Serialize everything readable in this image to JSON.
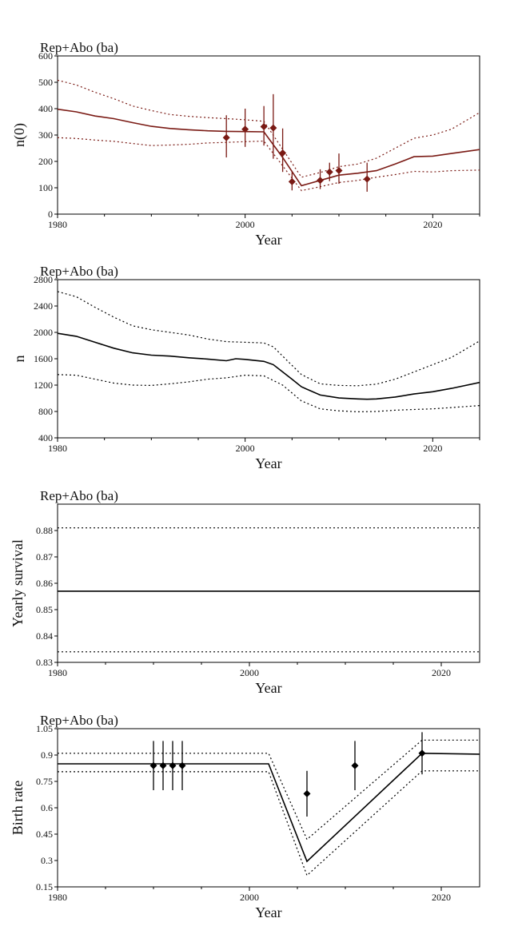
{
  "chart_data": [
    {
      "type": "line",
      "title": "Rep+Abo (ba)",
      "xlabel": "Year",
      "ylabel": "n(0)",
      "xlim": [
        1980,
        2025
      ],
      "ylim": [
        0,
        600
      ],
      "xticks": [
        1980,
        2000,
        2020
      ],
      "yticks": [
        0,
        100,
        200,
        300,
        400,
        500,
        600
      ],
      "grid": false,
      "series_color": "#7a1a14",
      "series": [
        {
          "style": "solid",
          "x": [
            1980,
            1982,
            1984,
            1986,
            1988,
            1990,
            1992,
            1994,
            1996,
            1998,
            2000,
            2002,
            2004,
            2006,
            2008,
            2010,
            2012,
            2014,
            2016,
            2018,
            2020,
            2022,
            2025
          ],
          "y": [
            398,
            388,
            372,
            362,
            347,
            333,
            325,
            320,
            316,
            314,
            313,
            312,
            215,
            108,
            128,
            148,
            155,
            165,
            190,
            218,
            220,
            230,
            245
          ]
        },
        {
          "style": "dotted",
          "x": [
            1980,
            1982,
            1984,
            1986,
            1988,
            1990,
            1992,
            1994,
            1996,
            1998,
            2000,
            2002,
            2004,
            2006,
            2008,
            2010,
            2012,
            2014,
            2016,
            2018,
            2020,
            2022,
            2025
          ],
          "y": [
            508,
            490,
            462,
            438,
            410,
            393,
            378,
            371,
            366,
            362,
            358,
            352,
            246,
            140,
            158,
            180,
            190,
            212,
            250,
            288,
            300,
            322,
            385
          ]
        },
        {
          "style": "dotted",
          "x": [
            1980,
            1982,
            1984,
            1986,
            1988,
            1990,
            1992,
            1994,
            1996,
            1998,
            2000,
            2002,
            2004,
            2006,
            2008,
            2010,
            2012,
            2014,
            2016,
            2018,
            2020,
            2022,
            2025
          ],
          "y": [
            290,
            287,
            281,
            276,
            268,
            260,
            262,
            265,
            270,
            272,
            275,
            277,
            183,
            89,
            104,
            120,
            128,
            140,
            150,
            162,
            160,
            165,
            167
          ]
        }
      ],
      "points": [
        {
          "x": 1998,
          "y": 290,
          "low": 215,
          "high": 375
        },
        {
          "x": 2000,
          "y": 322,
          "low": 255,
          "high": 400
        },
        {
          "x": 2002,
          "y": 332,
          "low": 260,
          "high": 410
        },
        {
          "x": 2003,
          "y": 327,
          "low": 210,
          "high": 455
        },
        {
          "x": 2004,
          "y": 232,
          "low": 160,
          "high": 325
        },
        {
          "x": 2005,
          "y": 123,
          "low": 90,
          "high": 160
        },
        {
          "x": 2008,
          "y": 128,
          "low": 95,
          "high": 170
        },
        {
          "x": 2009,
          "y": 160,
          "low": 125,
          "high": 195
        },
        {
          "x": 2010,
          "y": 165,
          "low": 115,
          "high": 230
        },
        {
          "x": 2013,
          "y": 133,
          "low": 85,
          "high": 195
        }
      ]
    },
    {
      "type": "line",
      "title": "Rep+Abo (ba)",
      "xlabel": "Year",
      "ylabel": "n",
      "xlim": [
        1980,
        2025
      ],
      "ylim": [
        400,
        2800
      ],
      "xticks": [
        1980,
        2000,
        2020
      ],
      "yticks": [
        400,
        800,
        1200,
        1600,
        2000,
        2400,
        2800
      ],
      "grid": false,
      "series_color": "#000000",
      "series": [
        {
          "style": "solid",
          "x": [
            1980,
            1982,
            1984,
            1986,
            1988,
            1990,
            1992,
            1994,
            1996,
            1998,
            1999,
            2000,
            2002,
            2003,
            2004,
            2005,
            2006,
            2008,
            2010,
            2012,
            2013,
            2014,
            2016,
            2018,
            2020,
            2022,
            2025
          ],
          "y": [
            1985,
            1940,
            1850,
            1760,
            1690,
            1655,
            1640,
            1615,
            1595,
            1570,
            1600,
            1590,
            1560,
            1510,
            1400,
            1290,
            1175,
            1050,
            1005,
            990,
            985,
            990,
            1020,
            1065,
            1100,
            1150,
            1240
          ]
        },
        {
          "style": "dotted",
          "x": [
            1980,
            1982,
            1984,
            1986,
            1988,
            1990,
            1992,
            1994,
            1996,
            1998,
            2000,
            2002,
            2003,
            2004,
            2005,
            2006,
            2008,
            2010,
            2012,
            2014,
            2016,
            2018,
            2020,
            2022,
            2025
          ],
          "y": [
            2620,
            2540,
            2380,
            2230,
            2100,
            2040,
            2000,
            1960,
            1900,
            1860,
            1850,
            1840,
            1780,
            1640,
            1500,
            1360,
            1220,
            1195,
            1190,
            1215,
            1290,
            1400,
            1510,
            1620,
            1870
          ]
        },
        {
          "style": "dotted",
          "x": [
            1980,
            1982,
            1984,
            1986,
            1988,
            1990,
            1992,
            1994,
            1996,
            1998,
            2000,
            2002,
            2004,
            2006,
            2008,
            2010,
            2012,
            2014,
            2016,
            2018,
            2020,
            2022,
            2025
          ],
          "y": [
            1360,
            1350,
            1290,
            1230,
            1200,
            1195,
            1220,
            1250,
            1290,
            1310,
            1350,
            1340,
            1200,
            960,
            840,
            810,
            795,
            800,
            820,
            830,
            840,
            860,
            890
          ]
        }
      ],
      "points": []
    },
    {
      "type": "line",
      "title": "Rep+Abo (ba)",
      "xlabel": "Year",
      "ylabel": "Yearly survival",
      "xlim": [
        1980,
        2024
      ],
      "ylim": [
        0.83,
        0.89
      ],
      "xticks": [
        1980,
        2000,
        2020
      ],
      "yticks": [
        0.83,
        0.84,
        0.85,
        0.86,
        0.87,
        0.88
      ],
      "grid": false,
      "series_color": "#000000",
      "series": [
        {
          "style": "solid",
          "x": [
            1980,
            2024
          ],
          "y": [
            0.857,
            0.857
          ]
        },
        {
          "style": "dotted",
          "x": [
            1980,
            2024
          ],
          "y": [
            0.881,
            0.881
          ]
        },
        {
          "style": "dotted",
          "x": [
            1980,
            2024
          ],
          "y": [
            0.834,
            0.834
          ]
        }
      ],
      "points": []
    },
    {
      "type": "line",
      "title": "Rep+Abo (ba)",
      "xlabel": "Year",
      "ylabel": "Birth rate",
      "xlim": [
        1980,
        2024
      ],
      "ylim": [
        0.15,
        1.05
      ],
      "xticks": [
        1980,
        2000,
        2020
      ],
      "yticks": [
        0.15,
        0.3,
        0.45,
        0.6,
        0.75,
        0.9,
        1.05
      ],
      "grid": false,
      "series_color": "#000000",
      "series": [
        {
          "style": "solid",
          "x": [
            1980,
            2002,
            2006,
            2018,
            2024
          ],
          "y": [
            0.85,
            0.85,
            0.295,
            0.91,
            0.905
          ]
        },
        {
          "style": "dotted",
          "x": [
            1980,
            2002,
            2006,
            2018,
            2024
          ],
          "y": [
            0.91,
            0.91,
            0.42,
            0.985,
            0.985
          ]
        },
        {
          "style": "dotted",
          "x": [
            1980,
            2002,
            2006,
            2018,
            2024
          ],
          "y": [
            0.805,
            0.805,
            0.215,
            0.81,
            0.81
          ]
        }
      ],
      "points": [
        {
          "x": 1990,
          "y": 0.84,
          "low": 0.7,
          "high": 0.98
        },
        {
          "x": 1991,
          "y": 0.84,
          "low": 0.7,
          "high": 0.98
        },
        {
          "x": 1992,
          "y": 0.84,
          "low": 0.7,
          "high": 0.98
        },
        {
          "x": 1993,
          "y": 0.84,
          "low": 0.7,
          "high": 0.98
        },
        {
          "x": 2006,
          "y": 0.68,
          "low": 0.55,
          "high": 0.81
        },
        {
          "x": 2011,
          "y": 0.84,
          "low": 0.7,
          "high": 0.98
        },
        {
          "x": 2018,
          "y": 0.91,
          "low": 0.79,
          "high": 1.03
        }
      ]
    }
  ]
}
